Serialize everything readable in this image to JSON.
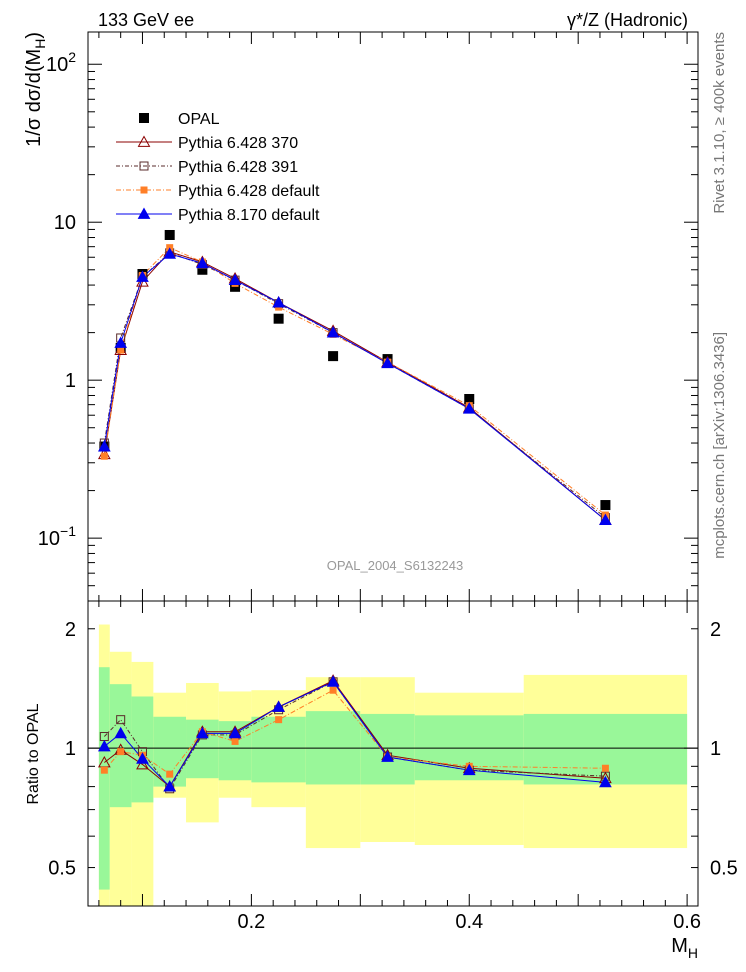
{
  "header": {
    "left": "133 GeV ee",
    "right": "γ*/Z (Hadronic)"
  },
  "side_labels": {
    "top": "Rivet 3.1.10, ≥ 400k events",
    "bottom": "mcplots.cern.ch [arXiv:1306.3436]"
  },
  "watermark": "OPAL_2004_S6132243",
  "colors": {
    "opal": "#000000",
    "py6_370": "#8b0000",
    "py6_391": "#5a2b2b",
    "py6_default": "#ff7f27",
    "py8_default": "#0000ee",
    "band_inner": "#99f799",
    "band_outer": "#ffff99"
  },
  "chart_data": [
    {
      "type": "scatter",
      "panel": "main",
      "ylabel": "1/σ dσ/d(M",
      "ylabel_sub": "H",
      "ylabel_end": ")",
      "yscale": "log",
      "ylim": [
        0.04,
        160
      ],
      "xlim": [
        0.05,
        0.61
      ],
      "y_ticks": [
        {
          "v": 0.1,
          "b": "10",
          "e": "−1"
        },
        {
          "v": 1,
          "b": "1",
          "e": ""
        },
        {
          "v": 10,
          "b": "10",
          "e": ""
        },
        {
          "v": 100,
          "b": "10",
          "e": "2"
        }
      ],
      "legend_position": "top-left",
      "x": [
        0.065,
        0.08,
        0.1,
        0.125,
        0.155,
        0.185,
        0.225,
        0.275,
        0.325,
        0.4,
        0.525
      ],
      "series": [
        {
          "name": "OPAL",
          "key": "opal",
          "marker": "square-filled",
          "values": [
            0.38,
            1.6,
            4.7,
            8.3,
            5.0,
            3.9,
            2.45,
            1.42,
            1.36,
            0.76,
            0.162
          ]
        },
        {
          "name": "Pythia 6.428 370",
          "key": "py6_370",
          "marker": "triangle-open",
          "values": [
            0.34,
            1.55,
            4.2,
            6.5,
            5.6,
            4.4,
            3.1,
            2.05,
            1.3,
            0.67,
            0.13
          ]
        },
        {
          "name": "Pythia 6.428 391",
          "key": "py6_391",
          "marker": "square-open",
          "values": [
            0.4,
            1.85,
            4.5,
            6.4,
            5.4,
            4.3,
            3.05,
            2.0,
            1.28,
            0.66,
            0.135
          ]
        },
        {
          "name": "Pythia 6.428 default",
          "key": "py6_default",
          "marker": "square-filled-small",
          "values": [
            0.33,
            1.55,
            4.6,
            6.9,
            5.6,
            4.1,
            2.9,
            1.95,
            1.3,
            0.69,
            0.14
          ]
        },
        {
          "name": "Pythia 8.170 default",
          "key": "py8_default",
          "marker": "triangle-filled",
          "values": [
            0.38,
            1.72,
            4.5,
            6.3,
            5.5,
            4.3,
            3.1,
            2.0,
            1.28,
            0.66,
            0.13
          ]
        }
      ]
    },
    {
      "type": "line",
      "panel": "ratio",
      "ylabel": "Ratio to OPAL",
      "xlabel": "M",
      "xlabel_sub": "H",
      "yscale": "log",
      "ylim": [
        0.4,
        2.35
      ],
      "xlim": [
        0.05,
        0.61
      ],
      "x_ticks": [
        0.2,
        0.4,
        0.6
      ],
      "y_ticks": [
        0.5,
        1,
        2
      ],
      "bands": {
        "edges": [
          0.06,
          0.07,
          0.09,
          0.11,
          0.14,
          0.17,
          0.2,
          0.25,
          0.3,
          0.35,
          0.45,
          0.6
        ],
        "inner_lo": [
          0.44,
          0.71,
          0.73,
          0.8,
          0.84,
          0.83,
          0.82,
          0.81,
          0.81,
          0.83,
          0.81
        ],
        "inner_hi": [
          1.6,
          1.45,
          1.35,
          1.2,
          1.18,
          1.17,
          1.2,
          1.24,
          1.22,
          1.21,
          1.22
        ],
        "outer_lo": [
          0.2,
          0.2,
          0.37,
          0.75,
          0.65,
          0.75,
          0.71,
          0.56,
          0.58,
          0.57,
          0.56
        ],
        "outer_hi": [
          2.05,
          1.75,
          1.65,
          1.38,
          1.46,
          1.39,
          1.4,
          1.51,
          1.51,
          1.38,
          1.53
        ]
      },
      "x": [
        0.065,
        0.08,
        0.1,
        0.125,
        0.155,
        0.185,
        0.225,
        0.275,
        0.325,
        0.4,
        0.525
      ],
      "series": [
        {
          "name": "Pythia 6.428 370",
          "key": "py6_370",
          "marker": "triangle-open",
          "values": [
            0.92,
            0.99,
            0.91,
            0.8,
            1.1,
            1.1,
            1.27,
            1.48,
            0.96,
            0.89,
            0.84
          ]
        },
        {
          "name": "Pythia 6.428 391",
          "key": "py6_391",
          "marker": "square-open",
          "values": [
            1.07,
            1.18,
            0.98,
            0.79,
            1.08,
            1.08,
            1.25,
            1.47,
            0.95,
            0.88,
            0.85
          ]
        },
        {
          "name": "Pythia 6.428 default",
          "key": "py6_default",
          "marker": "square-filled-small",
          "values": [
            0.88,
            0.98,
            0.96,
            0.86,
            1.1,
            1.04,
            1.18,
            1.4,
            0.95,
            0.9,
            0.89
          ]
        },
        {
          "name": "Pythia 8.170 default",
          "key": "py8_default",
          "marker": "triangle-filled",
          "values": [
            1.01,
            1.09,
            0.94,
            0.8,
            1.09,
            1.09,
            1.27,
            1.47,
            0.95,
            0.88,
            0.82
          ]
        }
      ]
    }
  ]
}
